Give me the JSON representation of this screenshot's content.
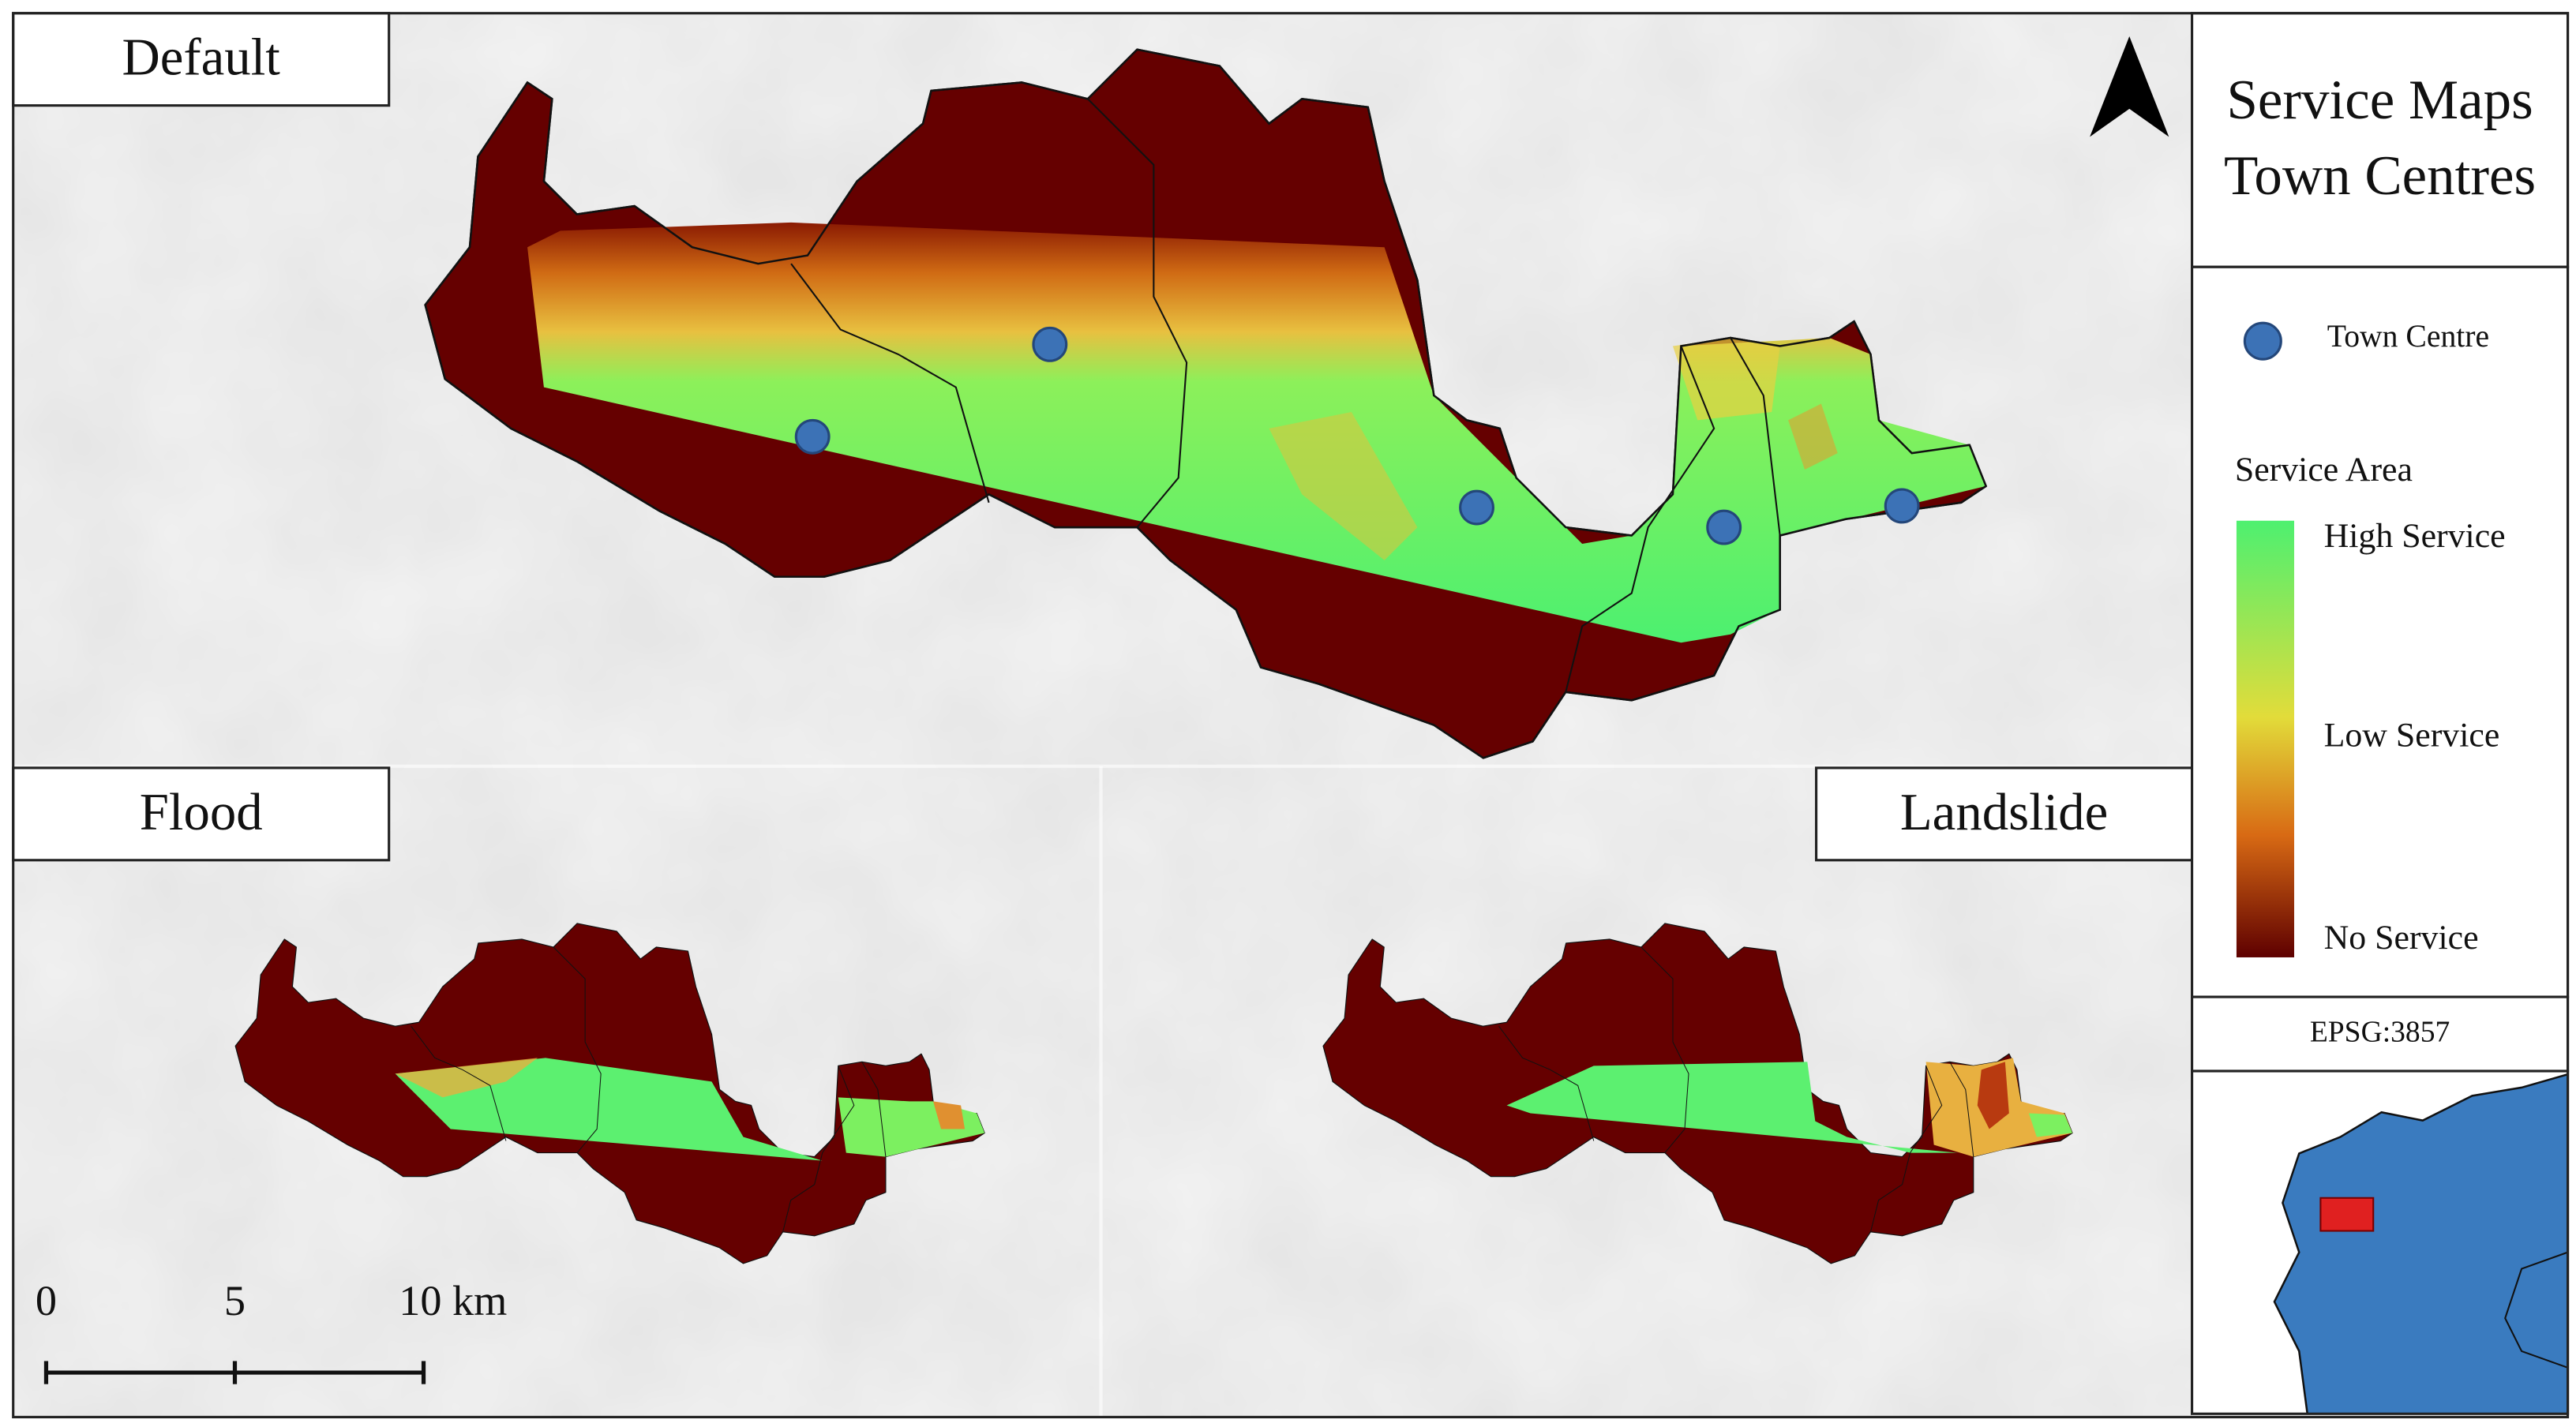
{
  "panels": [
    {
      "title": "Default"
    },
    {
      "title": "Flood"
    },
    {
      "title": "Landslide"
    }
  ],
  "legend": {
    "title": [
      "Service Maps",
      "Town Centres"
    ],
    "point_label": "Town Centre",
    "ramp_title": "Service Area",
    "ramp_labels": [
      "High Service",
      "Low Service",
      "No Service"
    ],
    "crs": "EPSG:3857"
  },
  "scale_bar": {
    "ticks": [
      0,
      5,
      {
        "value": 10,
        "label": "10 km"
      }
    ]
  }
}
